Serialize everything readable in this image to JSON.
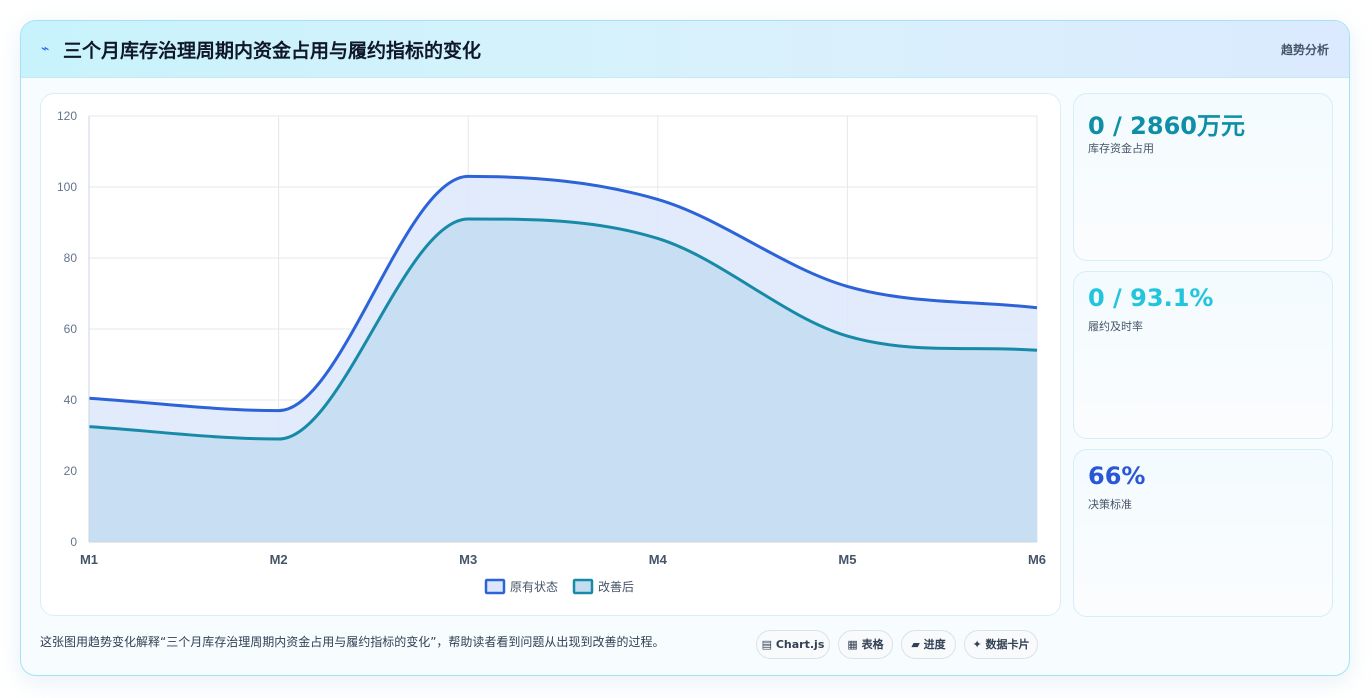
{
  "header": {
    "icon": "lightning-icon",
    "title": "三个月库存治理周期内资金占用与履约指标的变化",
    "tag": "趋势分析"
  },
  "stats": [
    {
      "value": "0 / 2860万元",
      "label": "库存资金占用",
      "color": "#0e8fa6"
    },
    {
      "value": "0 / 93.1%",
      "label": "履约及时率",
      "color": "#22c5dd"
    },
    {
      "value": "66%",
      "label": "决策标准",
      "color": "#2957d6"
    }
  ],
  "footer": {
    "text": "这张图用趋势变化解释“三个月库存治理周期内资金占用与履约指标的变化”，帮助读者看到问题从出现到改善的过程。",
    "pills": [
      {
        "icon": "chart-icon",
        "glyph": "▤",
        "label": "Chart.js"
      },
      {
        "icon": "table-icon",
        "glyph": "▦",
        "label": "表格"
      },
      {
        "icon": "progress-icon",
        "glyph": "▰",
        "label": "进度"
      },
      {
        "icon": "card-icon",
        "glyph": "✦",
        "label": "数据卡片"
      }
    ]
  },
  "chart_data": {
    "type": "area",
    "title": "",
    "xlabel": "",
    "ylabel": "",
    "categories": [
      "M1",
      "M2",
      "M3",
      "M4",
      "M5",
      "M6"
    ],
    "ylim": [
      0,
      120
    ],
    "yticks": [
      0,
      20,
      40,
      60,
      80,
      100,
      120
    ],
    "grid": true,
    "legend_position": "bottom",
    "series": [
      {
        "name": "原有状态",
        "values": [
          40.5,
          37,
          103,
          96.5,
          72,
          66
        ],
        "color": "#2c63d8",
        "fill": "#dce7fb"
      },
      {
        "name": "改善后",
        "values": [
          32.5,
          29,
          91,
          85.5,
          58,
          54
        ],
        "color": "#178aa8",
        "fill": "#c3dcf0"
      }
    ]
  }
}
